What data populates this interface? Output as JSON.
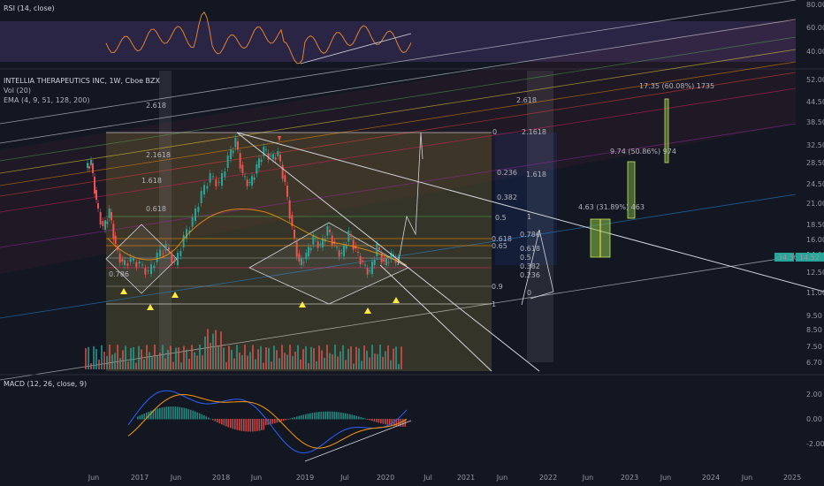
{
  "colors": {
    "background": "#131722",
    "rsi_line": "#e0812f",
    "rsi_band": "#7e57c2",
    "candle_up": "#26a69a",
    "candle_down": "#ef5350",
    "macd_line": "#2962ff",
    "signal_line": "#ff9800",
    "text": "#b2b5be",
    "price_badge": "#26a69a",
    "triangle": "#ffeb3b"
  },
  "rsi_pane": {
    "title": "RSI (14, close)",
    "axis_ticks": [
      "80.00",
      "60.00",
      "40.00"
    ]
  },
  "main_pane": {
    "title": "INTELLIA THERAPEUTICS INC, 1W, Cboe BZX",
    "vol_label": "Vol (20)",
    "ema_label": "EMA (4, 9, 51, 128, 200)",
    "axis_ticks": [
      "52.00",
      "44.50",
      "38.50",
      "32.50",
      "28.50",
      "24.50",
      "21.00",
      "18.50",
      "16.00",
      "14.00",
      "12.50",
      "11.00",
      "9.50",
      "8.50",
      "7.50",
      "6.70"
    ],
    "price_badge": "14.52",
    "change_badge": "-34.30%",
    "fib_left": [
      "2.618",
      "2.1618",
      "1.618",
      "0.618"
    ],
    "fib_top": [
      "0",
      "2.618",
      "2.1618",
      "0.236",
      "1.618",
      "0.382",
      "0.5"
    ],
    "fib_lower": [
      "0.618",
      "0.65",
      "0.786",
      "1",
      "0.9"
    ],
    "fib_right": [
      "1",
      "0.786",
      "0.618",
      "0.5",
      "0.382",
      "0.236",
      "0"
    ],
    "target_labels": [
      "17.35 (60.08%) 1735",
      "9.74 (50.86%) 974",
      "4.63 (31.89%) 463"
    ]
  },
  "macd_pane": {
    "title": "MACD (12, 26, close, 9)",
    "axis_ticks": [
      "2.00",
      "0.00",
      "-2.00"
    ]
  },
  "time_axis": [
    "Jun",
    "2017",
    "Jun",
    "2018",
    "Jun",
    "2019",
    "Jul",
    "2020",
    "Jul",
    "2021",
    "Jun",
    "2022",
    "Jun",
    "2023",
    "Jun",
    "2024",
    "Jun",
    "2025"
  ],
  "chart_data": {
    "type": "candlestick",
    "title": "INTELLIA THERAPEUTICS INC, 1W, Cboe BZX",
    "ylabel": "",
    "xlabel": "",
    "x": [
      "2016-06",
      "2016-09",
      "2017-01",
      "2017-04",
      "2017-07",
      "2017-10",
      "2018-01",
      "2018-04",
      "2018-07",
      "2018-10",
      "2019-01",
      "2019-04",
      "2019-07",
      "2019-10",
      "2020-01",
      "2020-03"
    ],
    "close": [
      27.0,
      14.0,
      14.5,
      13.0,
      16.5,
      21.0,
      28.0,
      25.0,
      32.0,
      17.0,
      13.5,
      17.0,
      15.5,
      12.5,
      16.0,
      14.5
    ],
    "ylim": [
      6.7,
      52.0
    ],
    "y_scale": "log",
    "legend": "none",
    "grid": false
  }
}
